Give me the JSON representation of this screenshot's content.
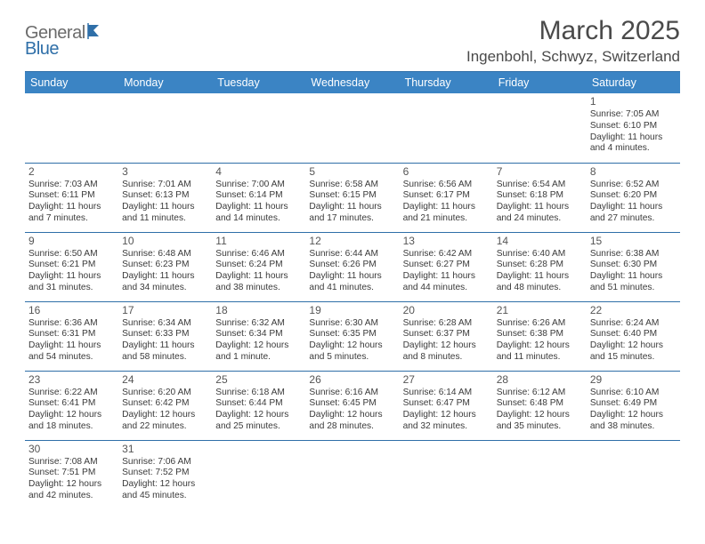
{
  "logo": {
    "part1": "General",
    "part2": "Blue"
  },
  "title": "March 2025",
  "location": "Ingenbohl, Schwyz, Switzerland",
  "colors": {
    "header_bg": "#3b84c4",
    "header_text": "#ffffff",
    "accent_line": "#2f6fa8",
    "body_text": "#3a3a3a",
    "logo_gray": "#6b6b6b",
    "logo_blue": "#2f6fa8"
  },
  "typography": {
    "title_fontsize": 30,
    "location_fontsize": 17,
    "dayheader_fontsize": 12.5,
    "cell_fontsize": 10.2,
    "daynum_fontsize": 12
  },
  "table": {
    "columns": [
      "Sunday",
      "Monday",
      "Tuesday",
      "Wednesday",
      "Thursday",
      "Friday",
      "Saturday"
    ],
    "weeks": [
      [
        null,
        null,
        null,
        null,
        null,
        null,
        {
          "n": "1",
          "sunrise": "7:05 AM",
          "sunset": "6:10 PM",
          "daylight": "11 hours and 4 minutes."
        }
      ],
      [
        {
          "n": "2",
          "sunrise": "7:03 AM",
          "sunset": "6:11 PM",
          "daylight": "11 hours and 7 minutes."
        },
        {
          "n": "3",
          "sunrise": "7:01 AM",
          "sunset": "6:13 PM",
          "daylight": "11 hours and 11 minutes."
        },
        {
          "n": "4",
          "sunrise": "7:00 AM",
          "sunset": "6:14 PM",
          "daylight": "11 hours and 14 minutes."
        },
        {
          "n": "5",
          "sunrise": "6:58 AM",
          "sunset": "6:15 PM",
          "daylight": "11 hours and 17 minutes."
        },
        {
          "n": "6",
          "sunrise": "6:56 AM",
          "sunset": "6:17 PM",
          "daylight": "11 hours and 21 minutes."
        },
        {
          "n": "7",
          "sunrise": "6:54 AM",
          "sunset": "6:18 PM",
          "daylight": "11 hours and 24 minutes."
        },
        {
          "n": "8",
          "sunrise": "6:52 AM",
          "sunset": "6:20 PM",
          "daylight": "11 hours and 27 minutes."
        }
      ],
      [
        {
          "n": "9",
          "sunrise": "6:50 AM",
          "sunset": "6:21 PM",
          "daylight": "11 hours and 31 minutes."
        },
        {
          "n": "10",
          "sunrise": "6:48 AM",
          "sunset": "6:23 PM",
          "daylight": "11 hours and 34 minutes."
        },
        {
          "n": "11",
          "sunrise": "6:46 AM",
          "sunset": "6:24 PM",
          "daylight": "11 hours and 38 minutes."
        },
        {
          "n": "12",
          "sunrise": "6:44 AM",
          "sunset": "6:26 PM",
          "daylight": "11 hours and 41 minutes."
        },
        {
          "n": "13",
          "sunrise": "6:42 AM",
          "sunset": "6:27 PM",
          "daylight": "11 hours and 44 minutes."
        },
        {
          "n": "14",
          "sunrise": "6:40 AM",
          "sunset": "6:28 PM",
          "daylight": "11 hours and 48 minutes."
        },
        {
          "n": "15",
          "sunrise": "6:38 AM",
          "sunset": "6:30 PM",
          "daylight": "11 hours and 51 minutes."
        }
      ],
      [
        {
          "n": "16",
          "sunrise": "6:36 AM",
          "sunset": "6:31 PM",
          "daylight": "11 hours and 54 minutes."
        },
        {
          "n": "17",
          "sunrise": "6:34 AM",
          "sunset": "6:33 PM",
          "daylight": "11 hours and 58 minutes."
        },
        {
          "n": "18",
          "sunrise": "6:32 AM",
          "sunset": "6:34 PM",
          "daylight": "12 hours and 1 minute."
        },
        {
          "n": "19",
          "sunrise": "6:30 AM",
          "sunset": "6:35 PM",
          "daylight": "12 hours and 5 minutes."
        },
        {
          "n": "20",
          "sunrise": "6:28 AM",
          "sunset": "6:37 PM",
          "daylight": "12 hours and 8 minutes."
        },
        {
          "n": "21",
          "sunrise": "6:26 AM",
          "sunset": "6:38 PM",
          "daylight": "12 hours and 11 minutes."
        },
        {
          "n": "22",
          "sunrise": "6:24 AM",
          "sunset": "6:40 PM",
          "daylight": "12 hours and 15 minutes."
        }
      ],
      [
        {
          "n": "23",
          "sunrise": "6:22 AM",
          "sunset": "6:41 PM",
          "daylight": "12 hours and 18 minutes."
        },
        {
          "n": "24",
          "sunrise": "6:20 AM",
          "sunset": "6:42 PM",
          "daylight": "12 hours and 22 minutes."
        },
        {
          "n": "25",
          "sunrise": "6:18 AM",
          "sunset": "6:44 PM",
          "daylight": "12 hours and 25 minutes."
        },
        {
          "n": "26",
          "sunrise": "6:16 AM",
          "sunset": "6:45 PM",
          "daylight": "12 hours and 28 minutes."
        },
        {
          "n": "27",
          "sunrise": "6:14 AM",
          "sunset": "6:47 PM",
          "daylight": "12 hours and 32 minutes."
        },
        {
          "n": "28",
          "sunrise": "6:12 AM",
          "sunset": "6:48 PM",
          "daylight": "12 hours and 35 minutes."
        },
        {
          "n": "29",
          "sunrise": "6:10 AM",
          "sunset": "6:49 PM",
          "daylight": "12 hours and 38 minutes."
        }
      ],
      [
        {
          "n": "30",
          "sunrise": "7:08 AM",
          "sunset": "7:51 PM",
          "daylight": "12 hours and 42 minutes."
        },
        {
          "n": "31",
          "sunrise": "7:06 AM",
          "sunset": "7:52 PM",
          "daylight": "12 hours and 45 minutes."
        },
        null,
        null,
        null,
        null,
        null
      ]
    ],
    "labels": {
      "sunrise": "Sunrise:",
      "sunset": "Sunset:",
      "daylight": "Daylight:"
    }
  }
}
